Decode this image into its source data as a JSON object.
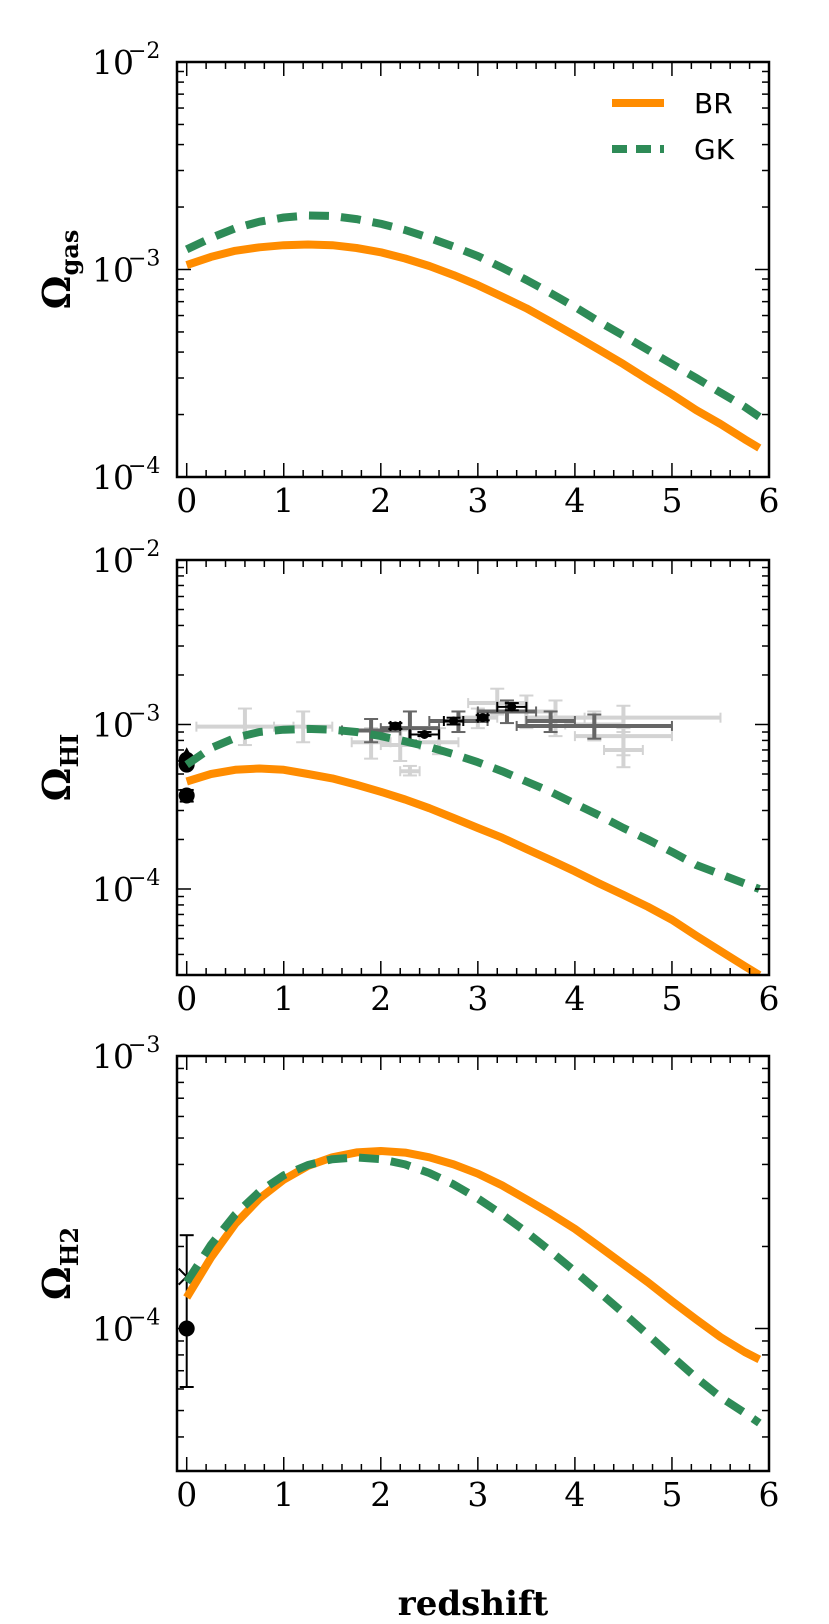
{
  "chart_data": [
    {
      "type": "line",
      "id": "gas",
      "ylabel_main": "Ω",
      "ylabel_sub": "gas",
      "xlabel": "",
      "xlim": [
        -0.1,
        6
      ],
      "ylim": [
        0.0001,
        0.01
      ],
      "yscale": "log",
      "xticks": [
        0,
        1,
        2,
        3,
        4,
        5,
        6
      ],
      "yticks": [
        {
          "value": 0.0001,
          "base": "10",
          "exp": "−4"
        },
        {
          "value": 0.001,
          "base": "10",
          "exp": "−3"
        },
        {
          "value": 0.01,
          "base": "10",
          "exp": "−2"
        }
      ],
      "legend": {
        "position": "top-right",
        "entries": [
          {
            "label": "BR",
            "color": "#ff8c00",
            "style": "solid"
          },
          {
            "label": "GK",
            "color": "#2e8b57",
            "style": "dashed"
          }
        ]
      },
      "series": [
        {
          "name": "BR",
          "color": "#ff8c00",
          "style": "solid",
          "x": [
            0,
            0.25,
            0.5,
            0.75,
            1,
            1.25,
            1.5,
            1.75,
            2,
            2.25,
            2.5,
            2.75,
            3,
            3.25,
            3.5,
            3.75,
            4,
            4.25,
            4.5,
            4.75,
            5,
            5.25,
            5.5,
            5.75,
            5.9
          ],
          "y": [
            0.00105,
            0.00115,
            0.00123,
            0.00128,
            0.00131,
            0.00132,
            0.00131,
            0.00127,
            0.00121,
            0.00113,
            0.00104,
            0.00094,
            0.00084,
            0.00074,
            0.00065,
            0.00056,
            0.00048,
            0.00041,
            0.00035,
            0.000295,
            0.00025,
            0.00021,
            0.00018,
            0.000152,
            0.000138
          ]
        },
        {
          "name": "GK",
          "color": "#2e8b57",
          "style": "dashed",
          "x": [
            0,
            0.25,
            0.5,
            0.75,
            1,
            1.25,
            1.5,
            1.75,
            2,
            2.25,
            2.5,
            2.75,
            3,
            3.25,
            3.5,
            3.75,
            4,
            4.25,
            4.5,
            4.75,
            5,
            5.25,
            5.5,
            5.75,
            5.9
          ],
          "y": [
            0.00125,
            0.00142,
            0.00158,
            0.0017,
            0.00178,
            0.00182,
            0.00181,
            0.00175,
            0.00166,
            0.00155,
            0.00142,
            0.00129,
            0.00116,
            0.00102,
            0.00089,
            0.00077,
            0.00066,
            0.00056,
            0.00048,
            0.00041,
            0.00035,
            0.0003,
            0.000255,
            0.000218,
            0.000195
          ]
        }
      ]
    },
    {
      "type": "line",
      "id": "hi",
      "ylabel_main": "Ω",
      "ylabel_sub": "HI",
      "xlabel": "",
      "xlim": [
        -0.1,
        6
      ],
      "ylim": [
        3e-05,
        0.01
      ],
      "yscale": "log",
      "xticks": [
        0,
        1,
        2,
        3,
        4,
        5,
        6
      ],
      "yticks": [
        {
          "value": 0.0001,
          "base": "10",
          "exp": "−4"
        },
        {
          "value": 0.001,
          "base": "10",
          "exp": "−3"
        },
        {
          "value": 0.01,
          "base": "10",
          "exp": "−2"
        }
      ],
      "series": [
        {
          "name": "BR",
          "color": "#ff8c00",
          "style": "solid",
          "x": [
            0,
            0.25,
            0.5,
            0.75,
            1,
            1.25,
            1.5,
            1.75,
            2,
            2.25,
            2.5,
            2.75,
            3,
            3.25,
            3.5,
            3.75,
            4,
            4.25,
            4.5,
            4.75,
            5,
            5.25,
            5.5,
            5.75,
            5.9
          ],
          "y": [
            0.00045,
            0.0005,
            0.00053,
            0.00054,
            0.00053,
            0.0005,
            0.00047,
            0.00043,
            0.00039,
            0.00035,
            0.00031,
            0.00027,
            0.000235,
            0.000205,
            0.000175,
            0.00015,
            0.000128,
            0.000108,
            9.2e-05,
            7.8e-05,
            6.5e-05,
            5.2e-05,
            4.2e-05,
            3.4e-05,
            3e-05
          ]
        },
        {
          "name": "GK",
          "color": "#2e8b57",
          "style": "dashed",
          "x": [
            0,
            0.25,
            0.5,
            0.75,
            1,
            1.25,
            1.5,
            1.75,
            2,
            2.25,
            2.5,
            2.75,
            3,
            3.25,
            3.5,
            3.75,
            4,
            4.25,
            4.5,
            4.75,
            5,
            5.25,
            5.5,
            5.75,
            5.9
          ],
          "y": [
            0.00057,
            0.00072,
            0.00083,
            0.0009,
            0.00093,
            0.00094,
            0.00093,
            0.0009,
            0.00085,
            0.00079,
            0.00073,
            0.00066,
            0.00059,
            0.00052,
            0.00045,
            0.00039,
            0.00033,
            0.00028,
            0.000235,
            0.0002,
            0.000168,
            0.00014,
            0.000123,
            0.000108,
            0.0001
          ]
        }
      ],
      "observations": [
        {
          "x": 0.6,
          "xlo": 0.1,
          "xhi": 1.1,
          "y": 0.00097,
          "ylo": 0.00075,
          "yhi": 0.00125,
          "color": "#d3d3d3"
        },
        {
          "x": 1.2,
          "xlo": 0.9,
          "xhi": 1.5,
          "y": 0.00097,
          "ylo": 0.00078,
          "yhi": 0.0012,
          "color": "#d3d3d3"
        },
        {
          "x": 1.9,
          "xlo": 1.7,
          "xhi": 2.1,
          "y": 0.00078,
          "ylo": 0.00062,
          "yhi": 0.00095,
          "color": "#d3d3d3"
        },
        {
          "x": 2.2,
          "xlo": 2.0,
          "xhi": 2.4,
          "y": 0.00075,
          "ylo": 0.0006,
          "yhi": 0.00092,
          "color": "#d3d3d3"
        },
        {
          "x": 2.3,
          "xlo": 2.2,
          "xhi": 2.4,
          "y": 0.00052,
          "ylo": 0.00049,
          "yhi": 0.00056,
          "color": "#d3d3d3"
        },
        {
          "x": 2.6,
          "xlo": 2.4,
          "xhi": 2.8,
          "y": 0.00078,
          "ylo": 0.00066,
          "yhi": 0.00095,
          "color": "#d3d3d3"
        },
        {
          "x": 3.0,
          "xlo": 2.8,
          "xhi": 3.2,
          "y": 0.0011,
          "ylo": 0.00095,
          "yhi": 0.00125,
          "color": "#d3d3d3"
        },
        {
          "x": 3.2,
          "xlo": 2.9,
          "xhi": 3.5,
          "y": 0.00135,
          "ylo": 0.00115,
          "yhi": 0.00165,
          "color": "#d3d3d3"
        },
        {
          "x": 3.5,
          "xlo": 3.2,
          "xhi": 3.8,
          "y": 0.0012,
          "ylo": 0.00095,
          "yhi": 0.0015,
          "color": "#d3d3d3"
        },
        {
          "x": 3.8,
          "xlo": 3.5,
          "xhi": 4.1,
          "y": 0.0011,
          "ylo": 0.00085,
          "yhi": 0.0014,
          "color": "#d3d3d3"
        },
        {
          "x": 4.2,
          "xlo": 3.9,
          "xhi": 4.5,
          "y": 0.001,
          "ylo": 0.0008,
          "yhi": 0.0012,
          "color": "#d3d3d3"
        },
        {
          "x": 4.5,
          "xlo": 4.0,
          "xhi": 5.0,
          "y": 0.00085,
          "ylo": 0.00065,
          "yhi": 0.0011,
          "color": "#d3d3d3"
        },
        {
          "x": 4.5,
          "xlo": 3.5,
          "xhi": 5.5,
          "y": 0.0011,
          "ylo": 0.00095,
          "yhi": 0.0013,
          "color": "#d3d3d3"
        },
        {
          "x": 4.5,
          "xlo": 4.3,
          "xhi": 4.7,
          "y": 0.0007,
          "ylo": 0.00055,
          "yhi": 0.0009,
          "color": "#d3d3d3"
        },
        {
          "x": 1.9,
          "xlo": 1.6,
          "xhi": 2.2,
          "y": 0.00092,
          "ylo": 0.00078,
          "yhi": 0.00108,
          "color": "#666666"
        },
        {
          "x": 2.3,
          "xlo": 2.0,
          "xhi": 2.6,
          "y": 0.00095,
          "ylo": 0.0008,
          "yhi": 0.0012,
          "color": "#666666"
        },
        {
          "x": 2.8,
          "xlo": 2.5,
          "xhi": 3.1,
          "y": 0.00105,
          "ylo": 0.0009,
          "yhi": 0.0012,
          "color": "#666666"
        },
        {
          "x": 3.3,
          "xlo": 3.0,
          "xhi": 3.6,
          "y": 0.0012,
          "ylo": 0.00102,
          "yhi": 0.0014,
          "color": "#666666"
        },
        {
          "x": 3.75,
          "xlo": 3.5,
          "xhi": 4.0,
          "y": 0.00105,
          "ylo": 0.0009,
          "yhi": 0.0012,
          "color": "#666666"
        },
        {
          "x": 4.2,
          "xlo": 3.4,
          "xhi": 5.0,
          "y": 0.00098,
          "ylo": 0.00082,
          "yhi": 0.00115,
          "color": "#666666"
        },
        {
          "x": 2.15,
          "xlo": 2.1,
          "xhi": 2.2,
          "y": 0.00098,
          "ylo": 0.00094,
          "yhi": 0.00102,
          "color": "#000000",
          "marker": "dot"
        },
        {
          "x": 2.45,
          "xlo": 2.3,
          "xhi": 2.6,
          "y": 0.00087,
          "ylo": 0.00085,
          "yhi": 0.0009,
          "color": "#000000",
          "marker": "dot"
        },
        {
          "x": 2.75,
          "xlo": 2.65,
          "xhi": 2.85,
          "y": 0.00105,
          "ylo": 0.001,
          "yhi": 0.0011,
          "color": "#000000",
          "marker": "dot"
        },
        {
          "x": 3.05,
          "xlo": 3.0,
          "xhi": 3.1,
          "y": 0.0011,
          "ylo": 0.00106,
          "yhi": 0.00114,
          "color": "#000000",
          "marker": "dot"
        },
        {
          "x": 3.35,
          "xlo": 3.2,
          "xhi": 3.5,
          "y": 0.00128,
          "ylo": 0.00122,
          "yhi": 0.00135,
          "color": "#000000",
          "marker": "dot"
        },
        {
          "x": 0,
          "y": 0.00065,
          "color": "#000000",
          "marker": "triangle"
        },
        {
          "x": 0,
          "y": 0.00061,
          "color": "#000000",
          "marker": "dot"
        },
        {
          "x": 0,
          "y": 0.00057,
          "color": "#000000",
          "marker": "dot"
        },
        {
          "x": 0,
          "y": 0.00037,
          "ylo": 0.00034,
          "yhi": 0.0004,
          "color": "#000000",
          "marker": "dot"
        }
      ]
    },
    {
      "type": "line",
      "id": "h2",
      "ylabel_main": "Ω",
      "ylabel_sub": "H2",
      "xlabel": "redshift",
      "xlim": [
        -0.1,
        6
      ],
      "ylim": [
        3e-05,
        0.001
      ],
      "yscale": "log",
      "xticks": [
        0,
        1,
        2,
        3,
        4,
        5,
        6
      ],
      "yticks": [
        {
          "value": 0.0001,
          "base": "10",
          "exp": "−4"
        },
        {
          "value": 0.001,
          "base": "10",
          "exp": "−3"
        }
      ],
      "series": [
        {
          "name": "BR",
          "color": "#ff8c00",
          "style": "solid",
          "x": [
            0,
            0.25,
            0.5,
            0.75,
            1,
            1.25,
            1.5,
            1.75,
            2,
            2.25,
            2.5,
            2.75,
            3,
            3.25,
            3.5,
            3.75,
            4,
            4.25,
            4.5,
            4.75,
            5,
            5.25,
            5.5,
            5.75,
            5.9
          ],
          "y": [
            0.00013,
            0.000182,
            0.000242,
            0.0003,
            0.000352,
            0.000395,
            0.000425,
            0.000443,
            0.000448,
            0.000442,
            0.000425,
            0.0004,
            0.00037,
            0.000335,
            0.000298,
            0.000264,
            0.000232,
            0.0002,
            0.000172,
            0.000148,
            0.000126,
            0.000108,
            9.3e-05,
            8.2e-05,
            7.7e-05
          ]
        },
        {
          "name": "GK",
          "color": "#2e8b57",
          "style": "dashed",
          "x": [
            0,
            0.25,
            0.5,
            0.75,
            1,
            1.25,
            1.5,
            1.75,
            2,
            2.25,
            2.5,
            2.75,
            3,
            3.25,
            3.5,
            3.75,
            4,
            4.25,
            4.5,
            4.75,
            5,
            5.25,
            5.5,
            5.75,
            5.9
          ],
          "y": [
            0.000148,
            0.000203,
            0.000262,
            0.000318,
            0.000365,
            0.000398,
            0.000418,
            0.000424,
            0.000418,
            0.0004,
            0.000372,
            0.000338,
            0.0003,
            0.000262,
            0.000226,
            0.000192,
            0.000162,
            0.000136,
            0.000114,
            9.5e-05,
            7.9e-05,
            6.6e-05,
            5.6e-05,
            4.9e-05,
            4.5e-05
          ]
        }
      ],
      "observations": [
        {
          "x": 0,
          "y": 0.0001,
          "ylo": 6.1e-05,
          "yhi": 0.00022,
          "color": "#000000",
          "marker": "dot"
        },
        {
          "x": 0,
          "y": 0.000155,
          "color": "#000000",
          "marker": "cross"
        }
      ]
    }
  ]
}
